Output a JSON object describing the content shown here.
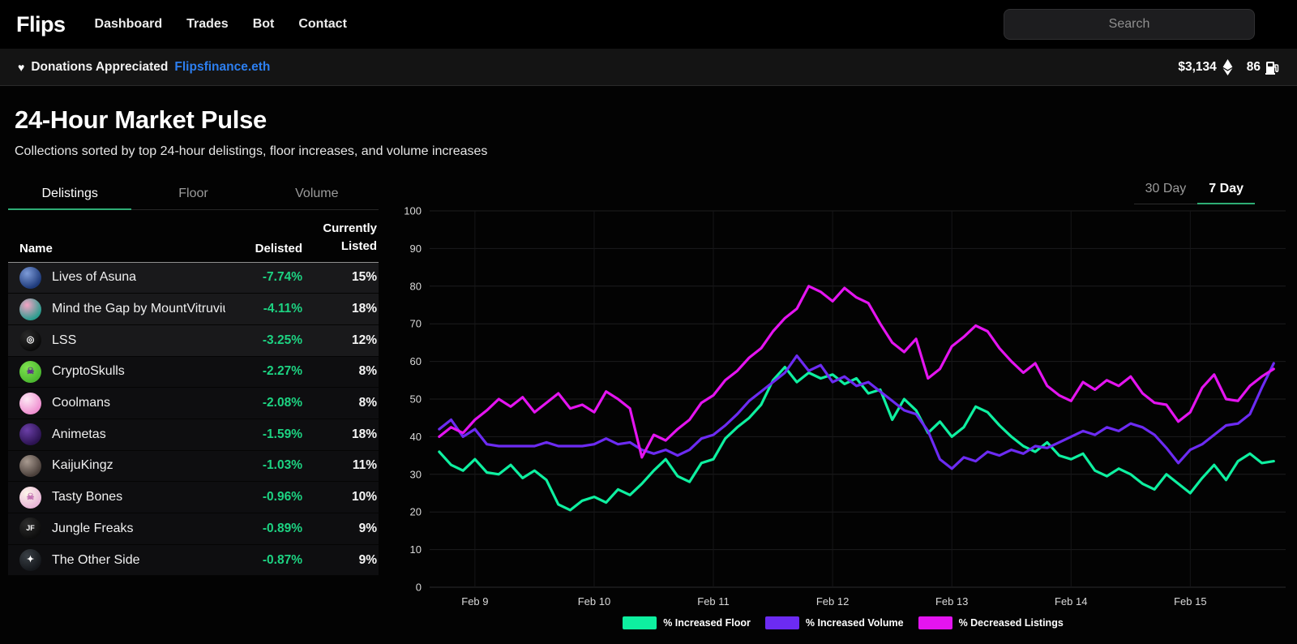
{
  "nav": {
    "logo": "Flips",
    "links": [
      {
        "label": "Dashboard"
      },
      {
        "label": "Trades"
      },
      {
        "label": "Bot"
      },
      {
        "label": "Contact"
      }
    ],
    "search_placeholder": "Search"
  },
  "banner": {
    "heart": "♥",
    "message": "Donations Appreciated",
    "link": "Flipsfinance.eth",
    "eth_price": "$3,134",
    "gas_price": "86"
  },
  "page": {
    "title": "24-Hour Market Pulse",
    "subtitle": "Collections sorted by top 24-hour delistings, floor increases, and volume increases"
  },
  "table": {
    "tabs": [
      {
        "label": "Delistings",
        "active": true
      },
      {
        "label": "Floor",
        "active": false
      },
      {
        "label": "Volume",
        "active": false
      }
    ],
    "columns": {
      "name": "Name",
      "delisted": "Delisted",
      "listed_line1": "Currently",
      "listed_line2": "Listed"
    },
    "rows": [
      {
        "name": "Lives of Asuna",
        "delisted": "-7.74%",
        "listed": "15%",
        "icon": {
          "name": "lives-of-asuna-icon",
          "c1": "#1e3a7a",
          "c2": "#7d9bd8",
          "glyph": "",
          "glyph_color": ""
        }
      },
      {
        "name": "Mind the Gap by MountVitruvius",
        "delisted": "-4.11%",
        "listed": "18%",
        "icon": {
          "name": "mind-the-gap-icon",
          "c1": "#2a9d8f",
          "c2": "#f4a3c4",
          "glyph": "",
          "glyph_color": ""
        }
      },
      {
        "name": "LSS",
        "delisted": "-3.25%",
        "listed": "12%",
        "icon": {
          "name": "lss-icon",
          "c1": "#0a0a0a",
          "c2": "#2b2b2b",
          "glyph": "◎",
          "glyph_color": "#ffffff"
        }
      },
      {
        "name": "CryptoSkulls",
        "delisted": "-2.27%",
        "listed": "8%",
        "icon": {
          "name": "cryptoskulls-icon",
          "c1": "#4cb830",
          "c2": "#7fe34f",
          "glyph": "☠",
          "glyph_color": "#5b2a8c"
        }
      },
      {
        "name": "Coolmans",
        "delisted": "-2.08%",
        "listed": "8%",
        "icon": {
          "name": "coolmans-icon",
          "c1": "#ef8fd0",
          "c2": "#fde9f5",
          "glyph": "",
          "glyph_color": ""
        }
      },
      {
        "name": "Animetas",
        "delisted": "-1.59%",
        "listed": "18%",
        "icon": {
          "name": "animetas-icon",
          "c1": "#2c1352",
          "c2": "#6b3fa8",
          "glyph": "",
          "glyph_color": ""
        }
      },
      {
        "name": "KaijuKingz",
        "delisted": "-1.03%",
        "listed": "11%",
        "icon": {
          "name": "kaijukingz-icon",
          "c1": "#4a3f3a",
          "c2": "#a89a90",
          "glyph": "",
          "glyph_color": ""
        }
      },
      {
        "name": "Tasty Bones",
        "delisted": "-0.96%",
        "listed": "10%",
        "icon": {
          "name": "tasty-bones-icon",
          "c1": "#e9b7d8",
          "c2": "#fdf6ea",
          "glyph": "☠",
          "glyph_color": "#c06bb0"
        }
      },
      {
        "name": "Jungle Freaks",
        "delisted": "-0.89%",
        "listed": "9%",
        "icon": {
          "name": "jungle-freaks-icon",
          "c1": "#0d0d0d",
          "c2": "#2e2e2e",
          "glyph": "JF",
          "glyph_color": "#ffffff"
        }
      },
      {
        "name": "The Other Side",
        "delisted": "-0.87%",
        "listed": "9%",
        "icon": {
          "name": "the-other-side-icon",
          "c1": "#15181c",
          "c2": "#3a4046",
          "glyph": "✦",
          "glyph_color": "#ffffff"
        }
      }
    ]
  },
  "chart": {
    "range_tabs": [
      {
        "label": "30 Day",
        "active": false
      },
      {
        "label": "7 Day",
        "active": true
      }
    ]
  },
  "chart_data": {
    "type": "line",
    "title": "",
    "xlabel": "",
    "ylabel": "",
    "ylim": [
      0,
      100
    ],
    "y_ticks": [
      0,
      10,
      20,
      30,
      40,
      50,
      60,
      70,
      80,
      90,
      100
    ],
    "grid": true,
    "legend_position": "bottom",
    "x_axis": {
      "unit": "days",
      "x_start": -0.3,
      "x_step": 0.1,
      "tick_days": [
        0,
        1,
        2,
        3,
        4,
        5,
        6
      ],
      "tick_labels": [
        "Feb 9",
        "Feb 10",
        "Feb 11",
        "Feb 12",
        "Feb 13",
        "Feb 14",
        "Feb 15"
      ]
    },
    "series": [
      {
        "name": "% Increased Floor",
        "color": "#0ef0a0",
        "values": [
          36,
          32.5,
          31,
          34,
          30.5,
          30,
          32.5,
          29,
          31,
          28.5,
          22,
          20.5,
          23,
          24,
          22.5,
          26,
          24.5,
          27.5,
          31,
          34,
          29.5,
          28,
          33,
          34,
          39.5,
          42.5,
          45,
          48.5,
          55,
          58.5,
          54.5,
          57,
          55.5,
          56.5,
          54,
          55.5,
          51.5,
          52.5,
          44.5,
          50,
          47,
          41,
          44,
          40,
          42.5,
          48,
          46.5,
          43,
          40,
          37.5,
          36,
          38.5,
          35,
          34,
          35.5,
          31,
          29.5,
          31.5,
          30,
          27.5,
          26,
          30,
          27.5,
          25,
          29,
          32.5,
          28.5,
          33.5,
          35.5,
          33,
          33.5
        ]
      },
      {
        "name": "% Increased Volume",
        "color": "#6c2bf2",
        "values": [
          42,
          44.5,
          40,
          42,
          38,
          37.5,
          37.5,
          37.5,
          37.5,
          38.5,
          37.5,
          37.5,
          37.5,
          38,
          39.5,
          38,
          38.5,
          36.5,
          35.5,
          36.5,
          35,
          36.5,
          39.5,
          40.5,
          43,
          46,
          49.5,
          52,
          54.5,
          57,
          61.5,
          57.5,
          59,
          54.5,
          56,
          53.5,
          54.5,
          52,
          49.5,
          47,
          46,
          41.5,
          34,
          31.5,
          34.5,
          33.5,
          36,
          35,
          36.5,
          35.5,
          37.5,
          37,
          38.5,
          40,
          41.5,
          40.5,
          42.5,
          41.5,
          43.5,
          42.5,
          40.5,
          37,
          33,
          36.5,
          38,
          40.5,
          43,
          43.5,
          46,
          53,
          59.5
        ]
      },
      {
        "name": "% Decreased Listings",
        "color": "#e414f0",
        "values": [
          40,
          42.5,
          41,
          44.5,
          47,
          50,
          48,
          50.5,
          46.5,
          49,
          51.5,
          47.5,
          48.5,
          46.5,
          52,
          50,
          47.5,
          34.5,
          40.5,
          39,
          42,
          44.5,
          49,
          51,
          55,
          57.5,
          61,
          63.5,
          68,
          71.5,
          74,
          80,
          78.5,
          76,
          79.5,
          77,
          75.5,
          70,
          65,
          62.5,
          66,
          55.5,
          58,
          64,
          66.5,
          69.5,
          68,
          63.5,
          60,
          57,
          59.5,
          53.5,
          51,
          49.5,
          54.5,
          52.5,
          55,
          53.5,
          56,
          51.5,
          49,
          48.5,
          44,
          46.5,
          53,
          56.5,
          50,
          49.5,
          53.5,
          56,
          58
        ]
      }
    ]
  }
}
